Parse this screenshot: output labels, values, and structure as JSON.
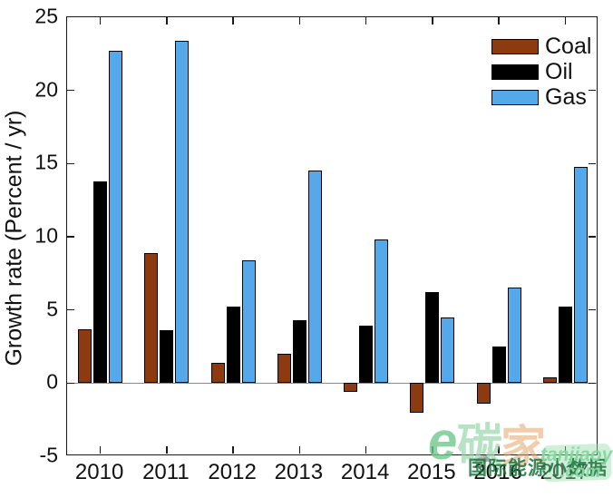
{
  "chart_data": {
    "type": "bar",
    "title": "",
    "categories": [
      "2010",
      "2011",
      "2012",
      "2013",
      "2014",
      "2015",
      "2016",
      "2017"
    ],
    "series": [
      {
        "name": "Coal",
        "color": "#8C3B10",
        "values": [
          3.7,
          8.9,
          1.4,
          2.0,
          -0.6,
          -2.0,
          -1.4,
          0.4
        ]
      },
      {
        "name": "Oil",
        "color": "#000000",
        "values": [
          13.8,
          3.6,
          5.2,
          4.3,
          3.9,
          6.2,
          2.5,
          5.2
        ]
      },
      {
        "name": "Gas",
        "color": "#55A9E8",
        "values": [
          22.7,
          23.4,
          8.4,
          14.5,
          9.8,
          4.5,
          6.5,
          14.8
        ]
      }
    ],
    "xlabel": "",
    "ylabel": "Growth rate (Percent / yr)",
    "ylim": [
      -5,
      25
    ],
    "yticks": [
      25,
      20,
      15,
      10,
      5,
      0,
      -5
    ],
    "grid": false,
    "legend_position": "top-right",
    "bar_edge_color": "#000000"
  },
  "legend": {
    "items": [
      {
        "label": "Coal",
        "color": "#8C3B10"
      },
      {
        "label": "Oil",
        "color": "#000000"
      },
      {
        "label": "Gas",
        "color": "#55A9E8"
      }
    ]
  },
  "watermark": {
    "logo_letter": "e",
    "big_char_1": "碳",
    "big_char_2": "家",
    "label": "国际能源小数据",
    "pinyin": "tanjiaoyi",
    "domain_suffix": ".com",
    "color_light_green": "#8CD7A5",
    "color_dark_green": "#1E7A3C",
    "color_orange": "#E1A569"
  }
}
